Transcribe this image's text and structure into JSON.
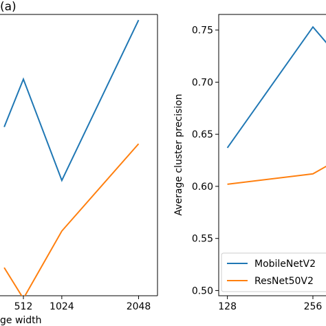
{
  "chart_data": [
    {
      "type": "line",
      "panel_label": "(a)",
      "xlabel": "ge width",
      "ylabel": "",
      "x_ticks": [
        "512",
        "1024",
        "2048"
      ],
      "x": [
        256,
        512,
        1024,
        2048
      ],
      "xlim": [
        200,
        2300
      ],
      "ylim": [
        0.0,
        1.0
      ],
      "grid": false,
      "series": [
        {
          "name": "MobileNetV2",
          "color": "#1f77b4",
          "values": [
            0.6,
            0.77,
            0.41,
            0.98
          ]
        },
        {
          "name": "ResNet50V2",
          "color": "#ff7f0e",
          "values": [
            0.1,
            -0.01,
            0.23,
            0.54
          ]
        }
      ]
    },
    {
      "type": "line",
      "panel_label": "",
      "xlabel": "",
      "ylabel": "Average cluster precision",
      "x_ticks": [
        "128",
        "256"
      ],
      "y_ticks": [
        "0.50",
        "0.55",
        "0.60",
        "0.65",
        "0.70",
        "0.75"
      ],
      "x": [
        128,
        256,
        300
      ],
      "xlim": [
        115,
        290
      ],
      "ylim": [
        0.495,
        0.765
      ],
      "grid": false,
      "legend": "bottom-left",
      "series": [
        {
          "name": "MobileNetV2",
          "color": "#1f77b4",
          "values": [
            0.637,
            0.753,
            0.72
          ]
        },
        {
          "name": "ResNet50V2",
          "color": "#ff7f0e",
          "values": [
            0.602,
            0.612,
            0.628
          ]
        }
      ]
    }
  ]
}
